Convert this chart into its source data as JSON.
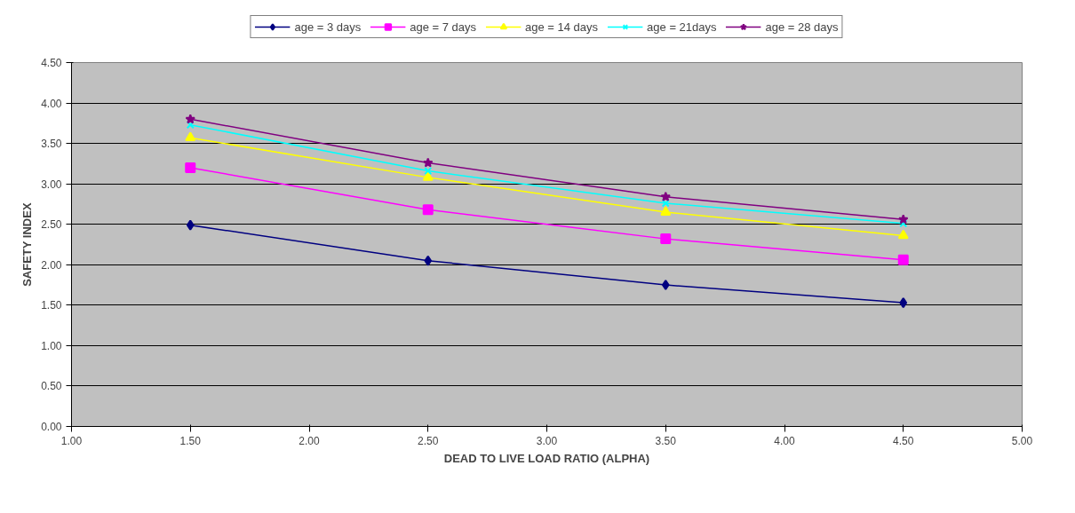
{
  "chart_data": {
    "type": "line",
    "xlabel": "DEAD TO LIVE LOAD RATIO (ALPHA)",
    "ylabel": "SAFETY INDEX",
    "x": [
      1.5,
      2.5,
      3.5,
      4.5
    ],
    "series": [
      {
        "name": "age = 3 days",
        "color": "#000080",
        "marker": "diamond",
        "values": [
          2.49,
          2.05,
          1.75,
          1.53
        ]
      },
      {
        "name": "age = 7 days",
        "color": "#ff00ff",
        "marker": "square",
        "values": [
          3.2,
          2.68,
          2.32,
          2.06
        ]
      },
      {
        "name": "age = 14 days",
        "color": "#ffff00",
        "marker": "triangle",
        "values": [
          3.57,
          3.08,
          2.65,
          2.36
        ]
      },
      {
        "name": "age = 21days",
        "color": "#00ffff",
        "marker": "cross",
        "values": [
          3.73,
          3.16,
          2.76,
          2.51
        ]
      },
      {
        "name": "age = 28 days",
        "color": "#800080",
        "marker": "star",
        "values": [
          3.8,
          3.26,
          2.84,
          2.56
        ]
      }
    ],
    "xlim": [
      1,
      5
    ],
    "xticks": [
      {
        "value": 1,
        "label": "1.00"
      },
      {
        "value": 1.5,
        "label": "1.50"
      },
      {
        "value": 2,
        "label": "2.00"
      },
      {
        "value": 2.5,
        "label": "2.50"
      },
      {
        "value": 3,
        "label": "3.00"
      },
      {
        "value": 3.5,
        "label": "3.50"
      },
      {
        "value": 4,
        "label": "4.00"
      },
      {
        "value": 4.5,
        "label": "4.50"
      },
      {
        "value": 5,
        "label": "5.00"
      }
    ],
    "ylim": [
      0,
      4.5
    ],
    "yticks": [
      {
        "value": 0,
        "label": "0.00"
      },
      {
        "value": 0.5,
        "label": "0.50"
      },
      {
        "value": 1,
        "label": "1.00"
      },
      {
        "value": 1.5,
        "label": "1.50"
      },
      {
        "value": 2,
        "label": "2.00"
      },
      {
        "value": 2.5,
        "label": "2.50"
      },
      {
        "value": 3,
        "label": "3.00"
      },
      {
        "value": 3.5,
        "label": "3.50"
      },
      {
        "value": 4,
        "label": "4.00"
      },
      {
        "value": 4.5,
        "label": "4.50"
      }
    ],
    "grid": "y",
    "legend": "top",
    "line_style": "solid"
  }
}
